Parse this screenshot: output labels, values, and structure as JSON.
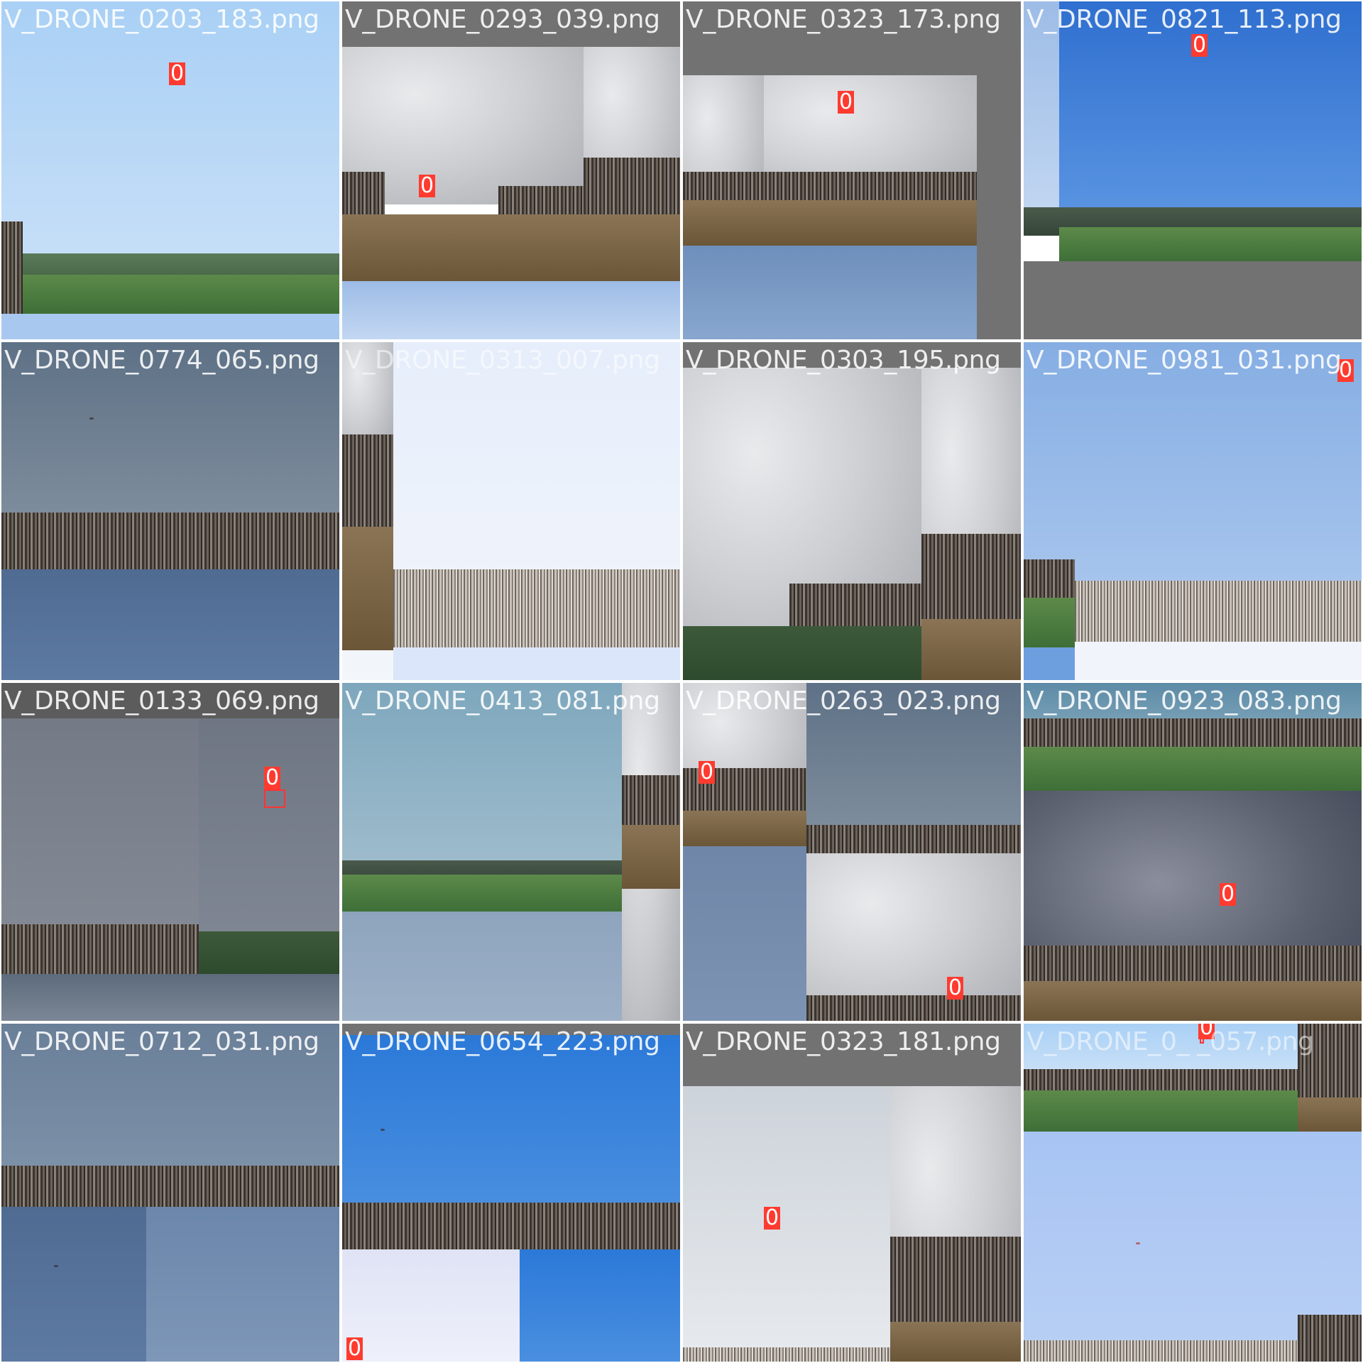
{
  "tiles": [
    {
      "filename": "V_DRONE_0203_183.png",
      "labels": [
        "0"
      ]
    },
    {
      "filename": "V_DRONE_0293_039.png",
      "labels": [
        "0"
      ]
    },
    {
      "filename": "V_DRONE_0323_173.png",
      "labels": [
        "0"
      ]
    },
    {
      "filename": "V_DRONE_0821_113.png",
      "labels": [
        "0"
      ]
    },
    {
      "filename": "V_DRONE_0774_065.png",
      "labels": []
    },
    {
      "filename": "V_DRONE_0313_007.png",
      "labels": []
    },
    {
      "filename": "V_DRONE_0303_195.png",
      "labels": []
    },
    {
      "filename": "V_DRONE_0981_031.png",
      "labels": [
        "0"
      ]
    },
    {
      "filename": "V_DRONE_0133_069.png",
      "labels": [
        "0"
      ]
    },
    {
      "filename": "V_DRONE_0413_081.png",
      "labels": []
    },
    {
      "filename": "V_DRONE_0263_023.png",
      "labels": [
        "0",
        "0"
      ]
    },
    {
      "filename": "V_DRONE_0923_083.png",
      "labels": [
        "0"
      ]
    },
    {
      "filename": "V_DRONE_0712_031.png",
      "labels": []
    },
    {
      "filename": "V_DRONE_0654_223.png",
      "labels": [
        "0"
      ]
    },
    {
      "filename": "V_DRONE_0323_181.png",
      "labels": [
        "0"
      ]
    },
    {
      "filename": "V_DRONE_0_ _057.png",
      "labels": [
        "0"
      ]
    }
  ],
  "colors": {
    "box": "#ff3333",
    "label_bg": "#ff3b30",
    "label_text": "#ffffff",
    "padding": "#727272"
  }
}
